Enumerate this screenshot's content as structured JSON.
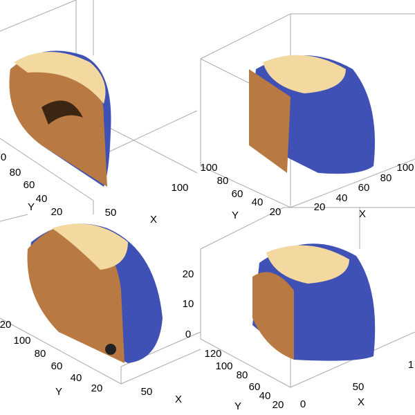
{
  "panels": [
    {
      "ticks": [
        "0",
        "80",
        "60",
        "40",
        "20",
        "100",
        "50"
      ],
      "axis_labels": [
        "Y",
        "X"
      ]
    },
    {
      "ticks": [
        "100",
        "80",
        "60",
        "40",
        "20",
        "20",
        "40",
        "60",
        "80",
        "100"
      ],
      "axis_labels": [
        "Y",
        "X"
      ]
    },
    {
      "ticks": [
        "20",
        "100",
        "80",
        "60",
        "40",
        "20",
        "50"
      ],
      "axis_labels": [
        "Y",
        "X"
      ]
    },
    {
      "ticks": [
        "20",
        "10",
        "0",
        "120",
        "100",
        "80",
        "60",
        "40",
        "20",
        "0",
        "50",
        "1"
      ],
      "axis_labels": [
        "Y",
        "X"
      ]
    }
  ]
}
